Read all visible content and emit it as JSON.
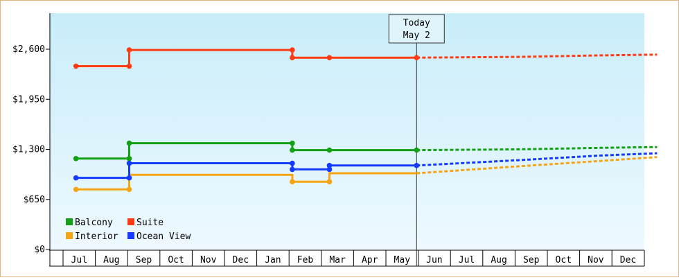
{
  "chart_data": {
    "type": "line",
    "title": "",
    "xlabel": "",
    "ylabel": "",
    "ylim": [
      0,
      2600
    ],
    "y_ticks": [
      {
        "value": 0,
        "label": "$0"
      },
      {
        "value": 650,
        "label": "$650"
      },
      {
        "value": 1300,
        "label": "$1,300"
      },
      {
        "value": 1950,
        "label": "$1,950"
      },
      {
        "value": 2600,
        "label": "$2,600"
      }
    ],
    "x_ticks": [
      "Jul",
      "Aug",
      "Sep",
      "Oct",
      "Nov",
      "Dec",
      "Jan",
      "Feb",
      "Mar",
      "Apr",
      "May",
      "Jun",
      "Jul",
      "Aug",
      "Sep",
      "Oct",
      "Nov",
      "Dec"
    ],
    "today": {
      "line1": "Today",
      "line2": "May 2",
      "x": 10.45
    },
    "grid": false,
    "legend_position": "bottom-left",
    "series": [
      {
        "name": "Balcony",
        "color": "#14a014",
        "actual": [
          [
            -0.1,
            1180
          ],
          [
            1.55,
            1180
          ],
          [
            1.55,
            1380
          ],
          [
            6.6,
            1380
          ],
          [
            6.6,
            1290
          ],
          [
            7.75,
            1290
          ],
          [
            10.45,
            1290
          ]
        ],
        "actual_markers": [
          [
            -0.1,
            1180
          ],
          [
            1.55,
            1180
          ],
          [
            1.55,
            1380
          ],
          [
            6.6,
            1380
          ],
          [
            6.6,
            1290
          ],
          [
            7.75,
            1290
          ],
          [
            10.45,
            1290
          ]
        ],
        "forecast": [
          [
            10.45,
            1290
          ],
          [
            13.6,
            1300
          ],
          [
            16.15,
            1320
          ],
          [
            17.9,
            1330
          ]
        ]
      },
      {
        "name": "Suite",
        "color": "#ff3c14",
        "actual": [
          [
            -0.1,
            2380
          ],
          [
            1.55,
            2380
          ],
          [
            1.55,
            2590
          ],
          [
            6.6,
            2590
          ],
          [
            6.6,
            2490
          ],
          [
            7.75,
            2490
          ],
          [
            10.45,
            2490
          ]
        ],
        "actual_markers": [
          [
            -0.1,
            2380
          ],
          [
            1.55,
            2380
          ],
          [
            1.55,
            2590
          ],
          [
            6.6,
            2590
          ],
          [
            6.6,
            2490
          ],
          [
            7.75,
            2490
          ],
          [
            10.45,
            2490
          ]
        ],
        "forecast": [
          [
            10.45,
            2490
          ],
          [
            13.6,
            2500
          ],
          [
            16.15,
            2520
          ],
          [
            17.9,
            2530
          ]
        ]
      },
      {
        "name": "Interior",
        "color": "#f5a514",
        "actual": [
          [
            -0.1,
            780
          ],
          [
            1.55,
            780
          ],
          [
            1.55,
            970
          ],
          [
            6.6,
            970
          ],
          [
            6.6,
            880
          ],
          [
            7.75,
            880
          ],
          [
            7.75,
            990
          ],
          [
            10.45,
            990
          ]
        ],
        "actual_markers": [
          [
            -0.1,
            780
          ],
          [
            1.55,
            780
          ],
          [
            6.6,
            880
          ],
          [
            7.75,
            880
          ]
        ],
        "forecast": [
          [
            10.45,
            990
          ],
          [
            13.6,
            1080
          ],
          [
            16.15,
            1150
          ],
          [
            17.9,
            1200
          ]
        ]
      },
      {
        "name": "Ocean View",
        "color": "#1439ff",
        "actual": [
          [
            -0.1,
            930
          ],
          [
            1.55,
            930
          ],
          [
            1.55,
            1120
          ],
          [
            6.6,
            1120
          ],
          [
            6.6,
            1040
          ],
          [
            7.75,
            1040
          ],
          [
            7.75,
            1090
          ],
          [
            10.45,
            1090
          ]
        ],
        "actual_markers": [
          [
            -0.1,
            930
          ],
          [
            1.55,
            930
          ],
          [
            1.55,
            1120
          ],
          [
            6.6,
            1120
          ],
          [
            6.6,
            1040
          ],
          [
            7.75,
            1040
          ],
          [
            7.75,
            1090
          ],
          [
            10.45,
            1090
          ]
        ],
        "forecast": [
          [
            10.45,
            1090
          ],
          [
            13.6,
            1160
          ],
          [
            16.15,
            1220
          ],
          [
            17.9,
            1250
          ]
        ]
      }
    ],
    "legend_rows": [
      [
        "Balcony",
        "Suite"
      ],
      [
        "Interior",
        "Ocean View"
      ]
    ]
  },
  "colors": {
    "plot_top": "#c8edf9",
    "plot_bottom": "#eef9ff",
    "frame_border": "#e2b27c"
  }
}
